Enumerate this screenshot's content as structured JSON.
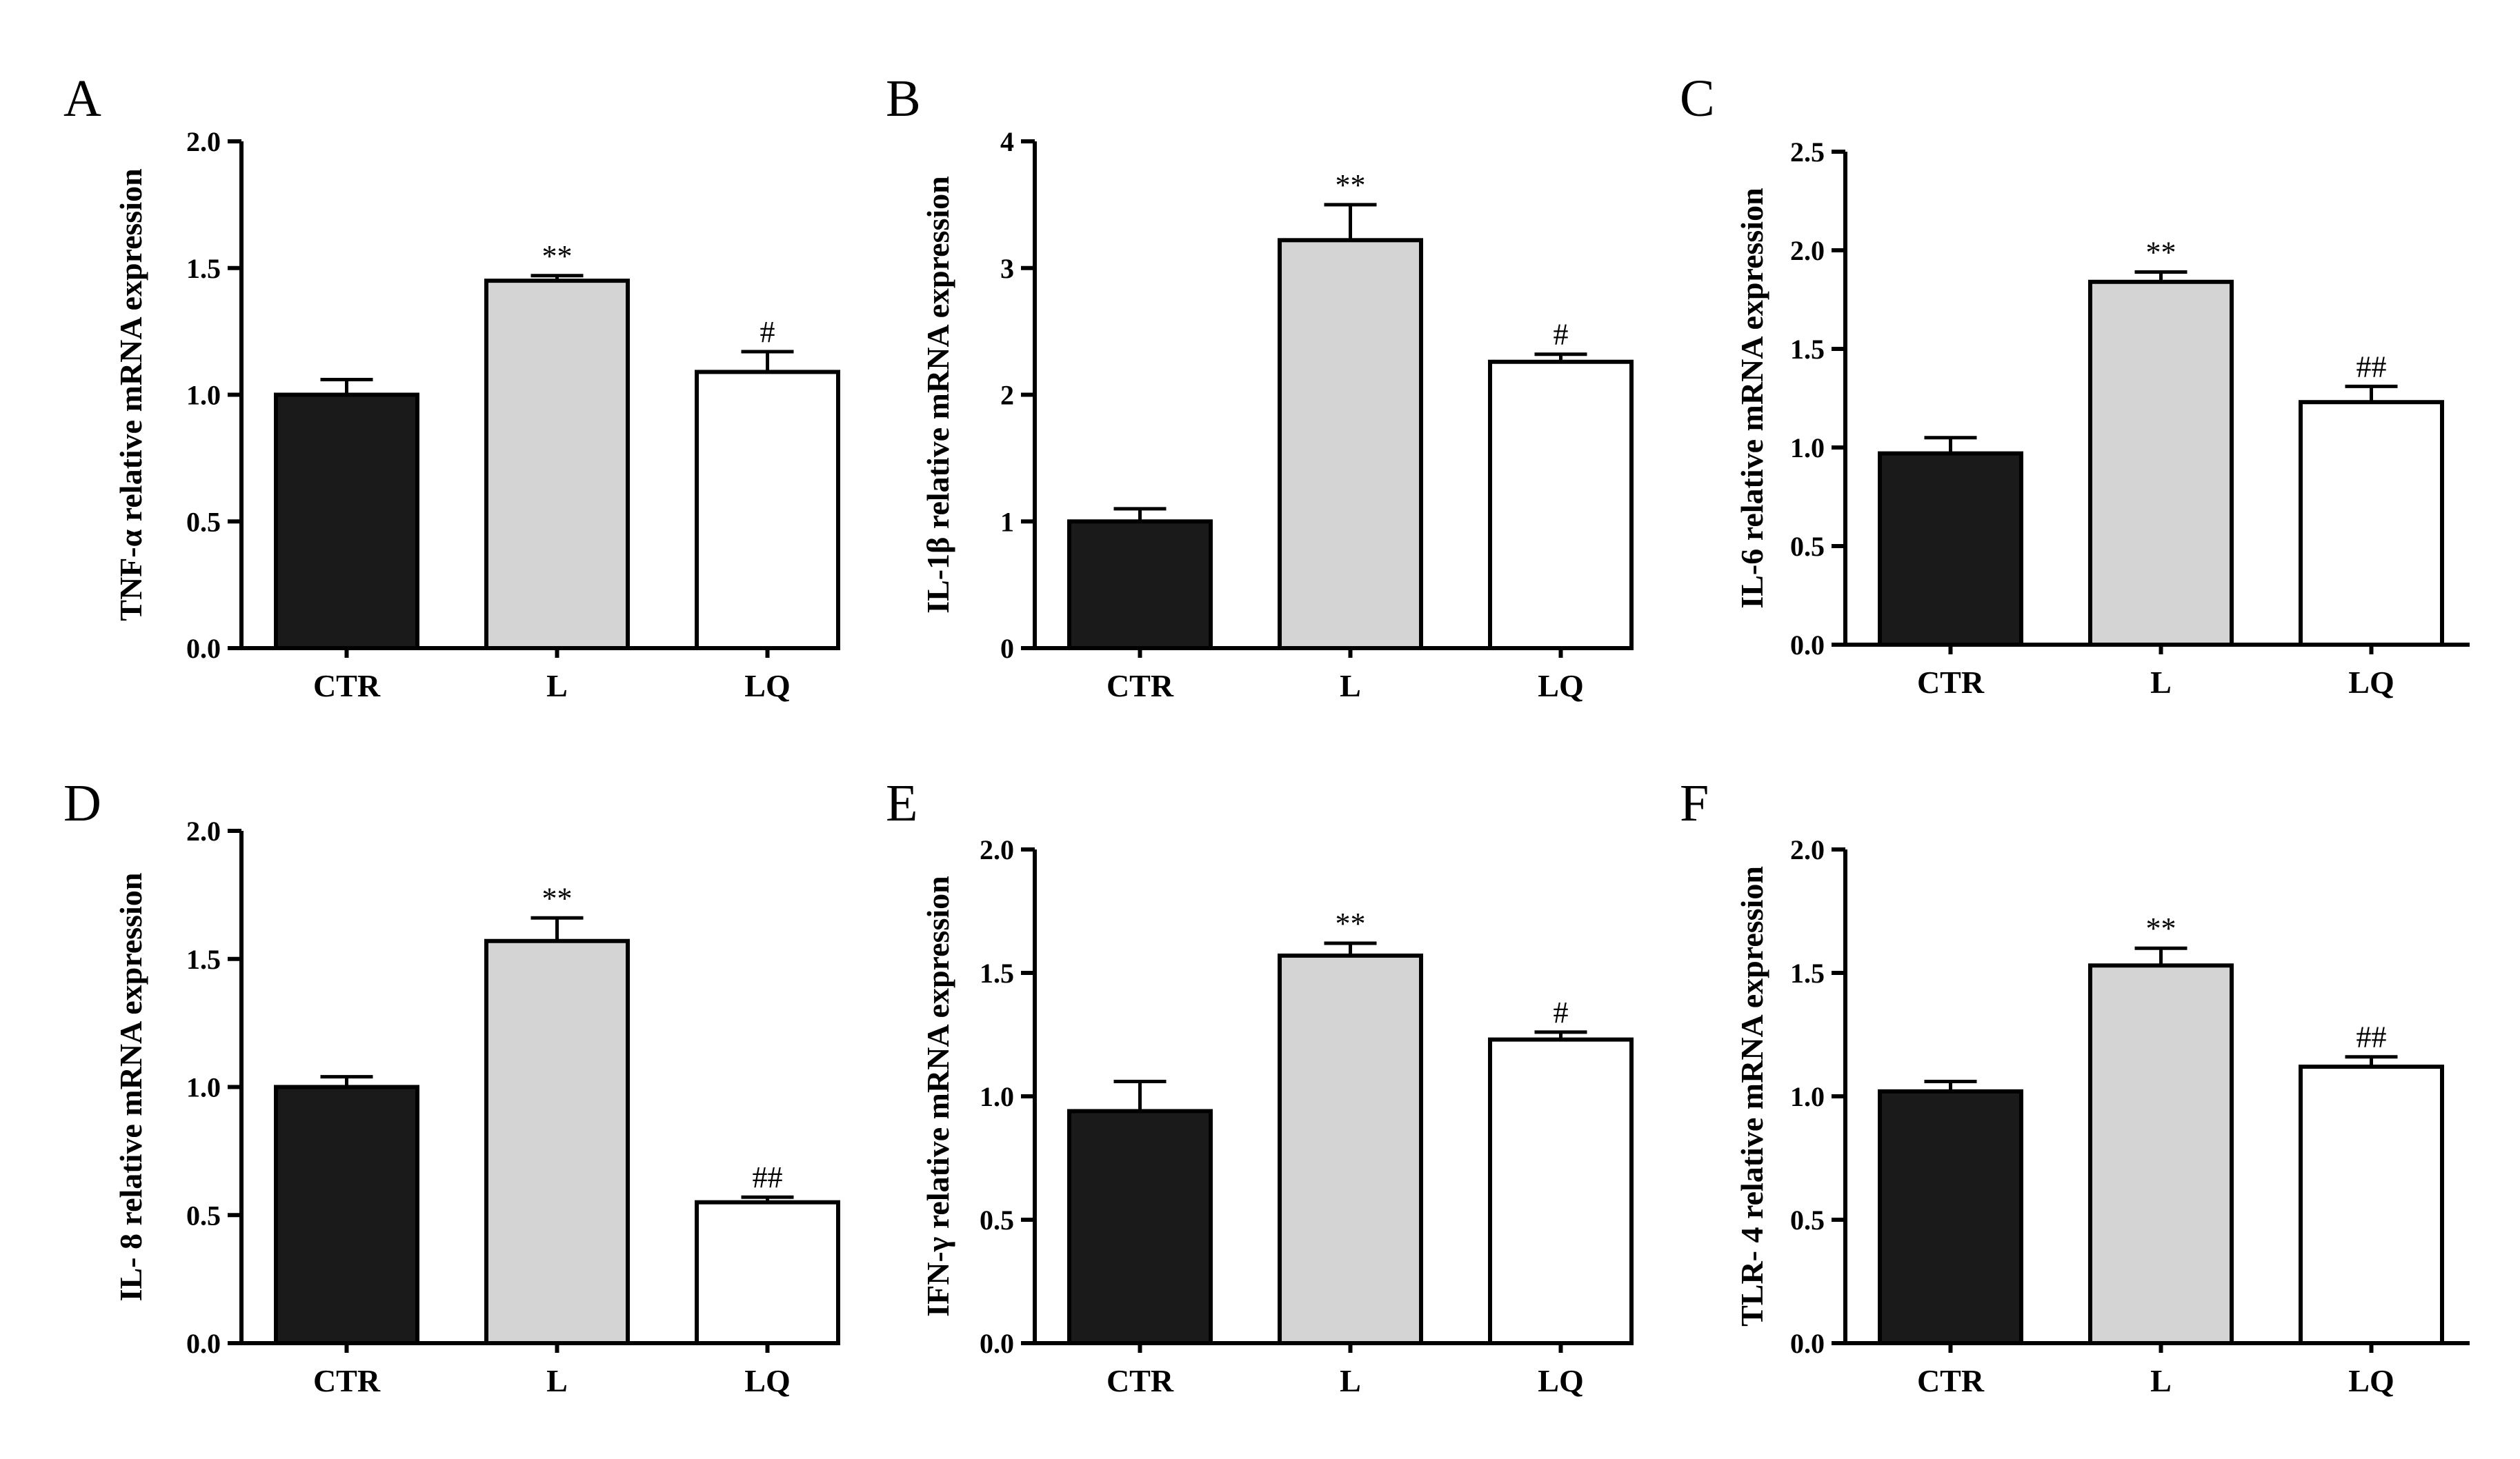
{
  "chart_data": [
    {
      "type": "bar",
      "panel": "A",
      "ylabel": "TNF-α  relative mRNA expression",
      "categories": [
        "CTR",
        "L",
        "LQ"
      ],
      "values": [
        1.0,
        1.45,
        1.09
      ],
      "errors": [
        0.06,
        0.02,
        0.08
      ],
      "significance": [
        "",
        "**",
        "#"
      ],
      "colors": [
        "#1a1a1a",
        "#d4d4d4",
        "#ffffff"
      ],
      "ylim": [
        0,
        2.0
      ],
      "yticks": [
        "0.0",
        "0.5",
        "1.0",
        "1.5",
        "2.0"
      ]
    },
    {
      "type": "bar",
      "panel": "B",
      "ylabel": "IL-1β  relative mRNA expression",
      "categories": [
        "CTR",
        "L",
        "LQ"
      ],
      "values": [
        1.0,
        3.22,
        2.26
      ],
      "errors": [
        0.1,
        0.28,
        0.06
      ],
      "significance": [
        "",
        "**",
        "#"
      ],
      "colors": [
        "#1a1a1a",
        "#d4d4d4",
        "#ffffff"
      ],
      "ylim": [
        0,
        4
      ],
      "yticks": [
        "0",
        "1",
        "2",
        "3",
        "4"
      ]
    },
    {
      "type": "bar",
      "panel": "C",
      "ylabel": "IL-6 relative mRNA expression",
      "categories": [
        "CTR",
        "L",
        "LQ"
      ],
      "values": [
        0.97,
        1.84,
        1.23
      ],
      "errors": [
        0.08,
        0.05,
        0.08
      ],
      "significance": [
        "",
        "**",
        "##"
      ],
      "colors": [
        "#1a1a1a",
        "#d4d4d4",
        "#ffffff"
      ],
      "ylim": [
        0,
        2.5
      ],
      "yticks": [
        "0.0",
        "0.5",
        "1.0",
        "1.5",
        "2.0",
        "2.5"
      ]
    },
    {
      "type": "bar",
      "panel": "D",
      "ylabel": "IL- 8 relative mRNA expression",
      "categories": [
        "CTR",
        "L",
        "LQ"
      ],
      "values": [
        1.0,
        1.57,
        0.55
      ],
      "errors": [
        0.04,
        0.09,
        0.02
      ],
      "significance": [
        "",
        "**",
        "##"
      ],
      "colors": [
        "#1a1a1a",
        "#d4d4d4",
        "#ffffff"
      ],
      "ylim": [
        0,
        2.0
      ],
      "yticks": [
        "0.0",
        "0.5",
        "1.0",
        "1.5",
        "2.0"
      ]
    },
    {
      "type": "bar",
      "panel": "E",
      "ylabel": "IFN-γ  relative mRNA expression",
      "categories": [
        "CTR",
        "L",
        "LQ"
      ],
      "values": [
        0.94,
        1.57,
        1.23
      ],
      "errors": [
        0.12,
        0.05,
        0.03
      ],
      "significance": [
        "",
        "**",
        "#"
      ],
      "colors": [
        "#1a1a1a",
        "#d4d4d4",
        "#ffffff"
      ],
      "ylim": [
        0,
        2.0
      ],
      "yticks": [
        "0.0",
        "0.5",
        "1.0",
        "1.5",
        "2.0"
      ]
    },
    {
      "type": "bar",
      "panel": "F",
      "ylabel": "TLR- 4 relative mRNA expression",
      "categories": [
        "CTR",
        "L",
        "LQ"
      ],
      "values": [
        1.02,
        1.53,
        1.12
      ],
      "errors": [
        0.04,
        0.07,
        0.04
      ],
      "significance": [
        "",
        "**",
        "##"
      ],
      "colors": [
        "#1a1a1a",
        "#d4d4d4",
        "#ffffff"
      ],
      "ylim": [
        0,
        2.0
      ],
      "yticks": [
        "0.0",
        "0.5",
        "1.0",
        "1.5",
        "2.0"
      ]
    }
  ]
}
